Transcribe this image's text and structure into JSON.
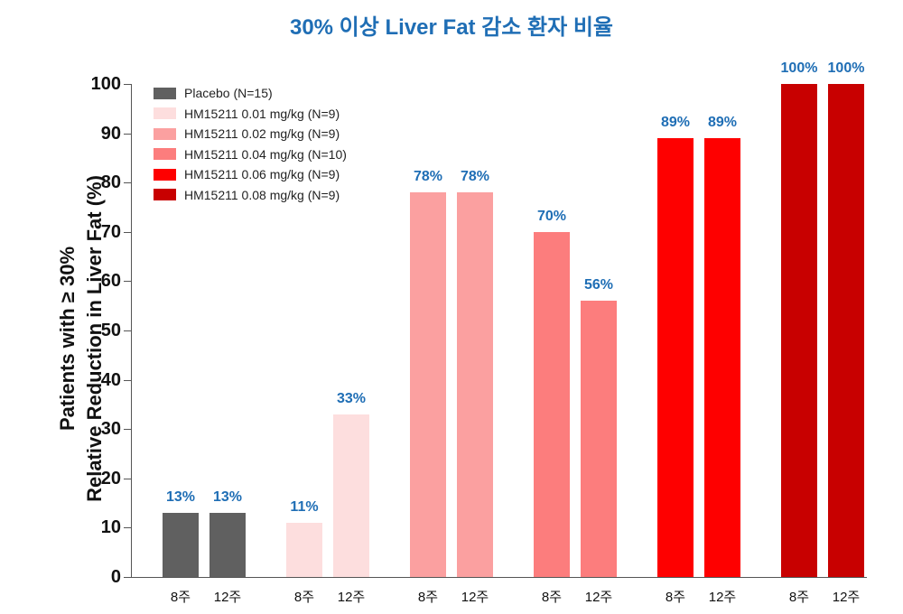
{
  "chart_data": {
    "type": "bar",
    "title": "30% 이상 Liver Fat 감소 환자 비율",
    "ylabel": "Patients with ≥ 30% Relative Reduction in Liver Fat (%)",
    "ylabel_line1": "Patients with ≥ 30%",
    "ylabel_line2": "Relative Reduction in Liver Fat (%)",
    "xlabel": "",
    "ylim": [
      0,
      100
    ],
    "yticks": [
      "0",
      "10",
      "20",
      "30",
      "40",
      "50",
      "60",
      "70",
      "80",
      "90",
      "100"
    ],
    "grid": false,
    "legend_position": "top-left",
    "categories": [
      "8주",
      "12주"
    ],
    "series": [
      {
        "name": "Placebo (N=15)",
        "color": "#606060",
        "values": [
          13,
          13
        ],
        "labels": [
          "13%",
          "13%"
        ]
      },
      {
        "name": "HM15211 0.01 mg/kg (N=9)",
        "color": "#fddede",
        "values": [
          11,
          33
        ],
        "labels": [
          "11%",
          "33%"
        ]
      },
      {
        "name": "HM15211 0.02 mg/kg (N=9)",
        "color": "#fba0a0",
        "values": [
          78,
          78
        ],
        "labels": [
          "78%",
          "78%"
        ]
      },
      {
        "name": "HM15211 0.04 mg/kg (N=10)",
        "color": "#fc7d7d",
        "values": [
          70,
          56
        ],
        "labels": [
          "70%",
          "56%"
        ]
      },
      {
        "name": "HM15211 0.06 mg/kg (N=9)",
        "color": "#fe0000",
        "values": [
          89,
          89
        ],
        "labels": [
          "89%",
          "89%"
        ]
      },
      {
        "name": "HM15211 0.08 mg/kg (N=9)",
        "color": "#c80000",
        "values": [
          100,
          100
        ],
        "labels": [
          "100%",
          "100%"
        ]
      }
    ],
    "value_label_color": "#1f6eb5"
  }
}
